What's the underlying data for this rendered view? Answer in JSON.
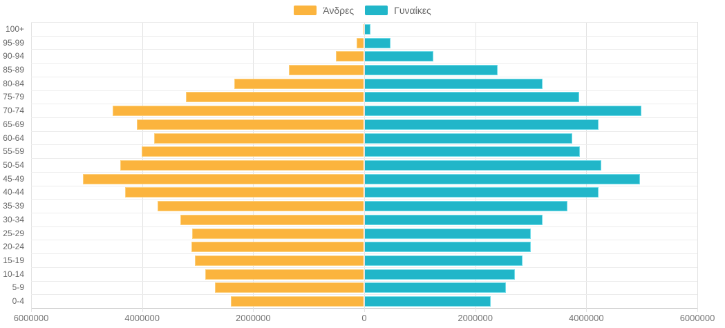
{
  "legend": {
    "men_label": "Άνδρες",
    "women_label": "Γυναίκες"
  },
  "colors": {
    "men_fill": "#fbb43e",
    "men_border": "#fdd07d",
    "women_fill": "#21b6c9",
    "women_border": "#6fdbe8",
    "gridline": "#e2e2e2",
    "axis_text": "#666666"
  },
  "chart_data": {
    "type": "bar",
    "subtype": "population-pyramid",
    "title": "",
    "xlabel": "",
    "ylabel": "",
    "grid": true,
    "legend_position": "top",
    "xlim": [
      0,
      6000000
    ],
    "x_ticks": [
      "6000000",
      "4000000",
      "2000000",
      "0",
      "2000000",
      "4000000",
      "6000000"
    ],
    "categories": [
      "100+",
      "95-99",
      "90-94",
      "85-89",
      "80-84",
      "75-79",
      "70-74",
      "65-69",
      "60-64",
      "55-59",
      "50-54",
      "45-49",
      "40-44",
      "35-39",
      "30-34",
      "25-29",
      "20-24",
      "15-19",
      "10-14",
      "5-9",
      "0-4"
    ],
    "series": [
      {
        "name": "Άνδρες",
        "side": "left",
        "color": "#fbb43e",
        "values": [
          10000,
          130000,
          500000,
          1350000,
          2330000,
          3210000,
          4530000,
          4090000,
          3780000,
          4010000,
          4390000,
          5070000,
          4300000,
          3720000,
          3310000,
          3090000,
          3110000,
          3040000,
          2860000,
          2680000,
          2400000
        ]
      },
      {
        "name": "Γυναίκες",
        "side": "right",
        "color": "#21b6c9",
        "values": [
          100000,
          460000,
          1240000,
          2400000,
          3210000,
          3870000,
          4990000,
          4210000,
          3740000,
          3880000,
          4260000,
          4960000,
          4210000,
          3650000,
          3210000,
          2990000,
          2990000,
          2850000,
          2710000,
          2540000,
          2270000
        ]
      }
    ]
  }
}
